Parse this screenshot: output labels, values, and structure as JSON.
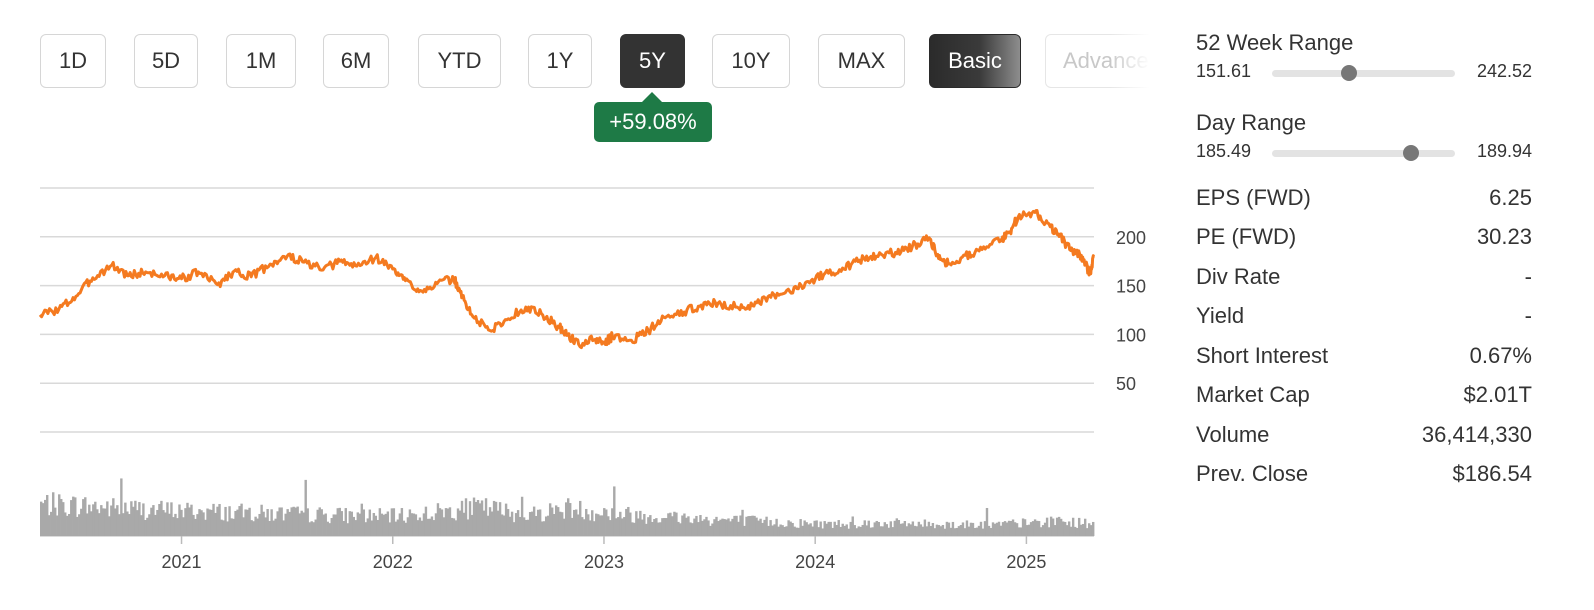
{
  "toolbar": {
    "periods": [
      {
        "label": "1D",
        "active": false
      },
      {
        "label": "5D",
        "active": false
      },
      {
        "label": "1M",
        "active": false
      },
      {
        "label": "6M",
        "active": false
      },
      {
        "label": "YTD",
        "active": false
      },
      {
        "label": "1Y",
        "active": false
      },
      {
        "label": "5Y",
        "active": true
      },
      {
        "label": "10Y",
        "active": false
      },
      {
        "label": "MAX",
        "active": false
      }
    ],
    "modes": [
      {
        "label": "Basic",
        "active": true
      },
      {
        "label": "Advanced",
        "active": false
      }
    ]
  },
  "change_badge": {
    "text": "+59.08%",
    "color": "#1e7a46"
  },
  "ranges": {
    "week52": {
      "title": "52 Week Range",
      "low": "151.61",
      "high": "242.52",
      "position": 0.42
    },
    "day": {
      "title": "Day Range",
      "low": "185.49",
      "high": "189.94",
      "position": 0.76
    }
  },
  "stats": [
    {
      "label": "EPS (FWD)",
      "value": "6.25"
    },
    {
      "label": "PE (FWD)",
      "value": "30.23"
    },
    {
      "label": "Div Rate",
      "value": "-"
    },
    {
      "label": "Yield",
      "value": "-"
    },
    {
      "label": "Short Interest",
      "value": "0.67%"
    },
    {
      "label": "Market Cap",
      "value": "$2.01T"
    },
    {
      "label": "Volume",
      "value": "36,414,330"
    },
    {
      "label": "Prev. Close",
      "value": "$186.54"
    }
  ],
  "chart_data": {
    "type": "line",
    "title": "",
    "xlabel": "",
    "ylabel": "",
    "line_color": "#f47a20",
    "volume_color": "#a9a9a9",
    "grid": true,
    "ylim": [
      0,
      250
    ],
    "yticks": [
      50,
      100,
      150,
      200
    ],
    "xlim": [
      2020.33,
      2025.32
    ],
    "xticks": [
      {
        "label": "2021",
        "x": 2021.0
      },
      {
        "label": "2022",
        "x": 2022.0
      },
      {
        "label": "2023",
        "x": 2023.0
      },
      {
        "label": "2024",
        "x": 2024.0
      },
      {
        "label": "2025",
        "x": 2025.0
      }
    ],
    "series": [
      {
        "type": "line",
        "x": [
          2020.33,
          2020.42,
          2020.5,
          2020.58,
          2020.67,
          2020.75,
          2020.83,
          2020.92,
          2021.0,
          2021.08,
          2021.17,
          2021.25,
          2021.33,
          2021.42,
          2021.5,
          2021.58,
          2021.67,
          2021.75,
          2021.83,
          2021.92,
          2022.0,
          2022.06,
          2022.13,
          2022.21,
          2022.29,
          2022.33,
          2022.38,
          2022.46,
          2022.54,
          2022.63,
          2022.71,
          2022.79,
          2022.83,
          2022.88,
          2022.96,
          2023.0,
          2023.04,
          2023.13,
          2023.21,
          2023.29,
          2023.38,
          2023.46,
          2023.54,
          2023.63,
          2023.71,
          2023.79,
          2023.88,
          2023.96,
          2024.04,
          2024.13,
          2024.21,
          2024.29,
          2024.38,
          2024.46,
          2024.54,
          2024.58,
          2024.63,
          2024.71,
          2024.79,
          2024.88,
          2024.92,
          2024.96,
          2025.04,
          2025.1,
          2025.15,
          2025.21,
          2025.26,
          2025.3,
          2025.32
        ],
        "y": [
          120,
          126,
          139,
          158,
          171,
          160,
          164,
          160,
          157,
          164,
          151,
          165,
          159,
          172,
          180,
          174,
          166,
          175,
          170,
          179,
          167,
          155,
          145,
          152,
          157,
          138,
          118,
          104,
          115,
          128,
          120,
          107,
          99,
          90,
          95,
          91,
          98,
          94,
          104,
          117,
          123,
          130,
          132,
          128,
          129,
          138,
          144,
          154,
          161,
          168,
          176,
          180,
          184,
          190,
          199,
          182,
          172,
          181,
          187,
          197,
          205,
          220,
          225,
          214,
          203,
          186,
          181,
          162,
          180
        ]
      },
      {
        "type": "bar",
        "name": "Volume",
        "x": [
          2020.33,
          2020.5,
          2020.67,
          2020.83,
          2021.0,
          2021.17,
          2021.33,
          2021.5,
          2021.67,
          2021.83,
          2022.0,
          2022.08,
          2022.17,
          2022.25,
          2022.33,
          2022.42,
          2022.5,
          2022.58,
          2022.67,
          2022.75,
          2022.83,
          2022.92,
          2023.0,
          2023.17,
          2023.33,
          2023.5,
          2023.67,
          2023.83,
          2024.0,
          2024.17,
          2024.33,
          2024.5,
          2024.67,
          2024.83,
          2025.0,
          2025.17,
          2025.32
        ],
        "values": [
          42,
          40,
          37,
          35,
          33,
          32,
          30,
          29,
          28,
          27,
          26,
          28,
          30,
          33,
          35,
          38,
          34,
          30,
          29,
          33,
          37,
          33,
          31,
          27,
          25,
          22,
          20,
          18,
          16,
          16,
          17,
          16,
          15,
          15,
          17,
          19,
          16
        ]
      }
    ]
  }
}
